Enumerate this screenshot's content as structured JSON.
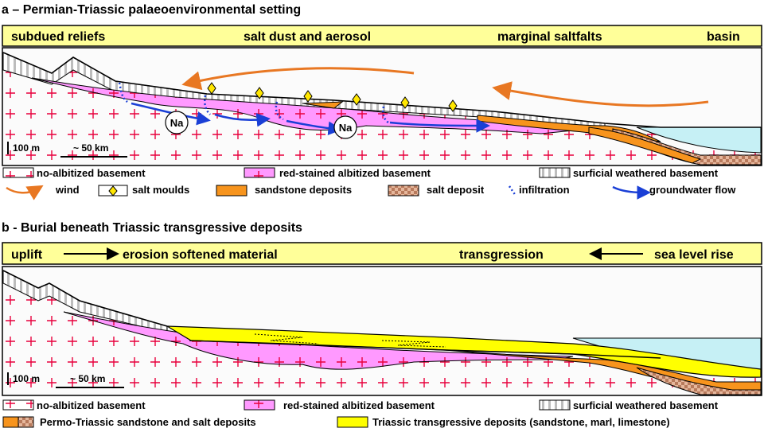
{
  "panel_a": {
    "title": "a – Permian-Triassic palaeoenvironmental setting",
    "band": [
      "subdued reliefs",
      "salt dust and aerosol",
      "marginal saltfalts",
      "basin"
    ],
    "scale_vertical": "100 m",
    "scale_horizontal": "~ 50 km",
    "na_label": "Na",
    "legend": {
      "no_albitized": "no-albitized basement",
      "red_stained": "red-stained albitized basement",
      "surficial": "surficial weathered basement",
      "wind": "wind",
      "salt_moulds": "salt moulds",
      "sandstone": "sandstone deposits",
      "salt_deposit": "salt deposit",
      "infiltration": "infiltration",
      "groundwater": "groundwater flow"
    }
  },
  "panel_b": {
    "title": "b - Burial beneath Triassic transgressive deposits",
    "band": [
      "uplift",
      "erosion softened material",
      "transgression",
      "sea level rise"
    ],
    "scale_vertical": "100 m",
    "scale_horizontal": "~ 50 km",
    "legend": {
      "no_albitized": "no-albitized basement",
      "red_stained": "red-stained albitized basement",
      "surficial": "surficial weathered basement",
      "permo_triassic": "Permo-Triassic sandstone and salt deposits",
      "triassic": "Triassic transgressive deposits (sandstone, marl, limestone)"
    }
  },
  "colors": {
    "band_fill": "#ffff99",
    "albitized": "#ff99ff",
    "cross": "#e8003c",
    "sandstone": "#f7941d",
    "salt": "#d9a88a",
    "water": "#c6f0f5",
    "transgressive": "#ffff00",
    "wind": "#e87722",
    "groundwater": "#1a3fd6",
    "weathered": "#bdbdbd"
  }
}
